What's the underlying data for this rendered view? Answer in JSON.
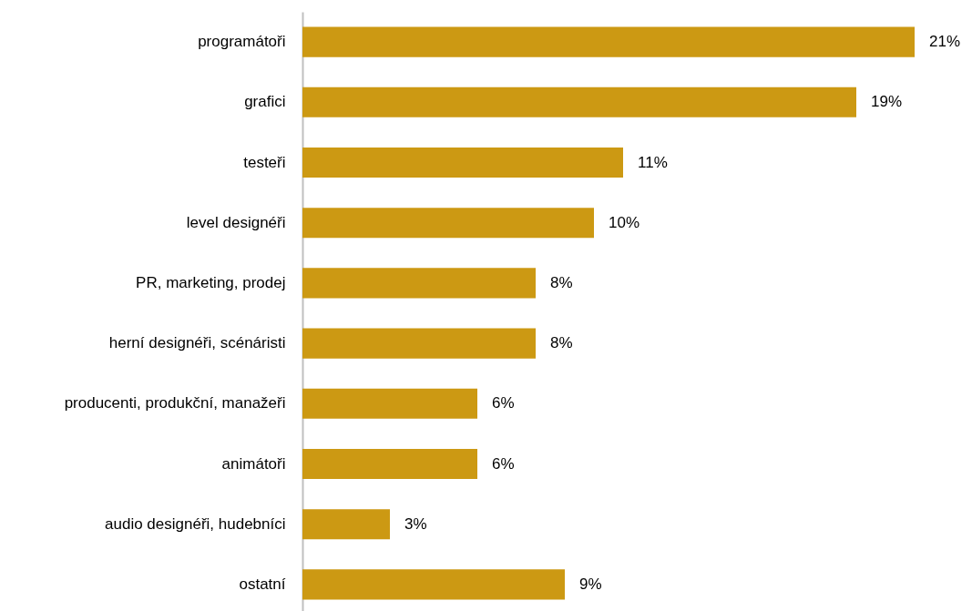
{
  "chart_data": {
    "type": "bar",
    "orientation": "horizontal",
    "categories": [
      "programátoři",
      "grafici",
      "testeři",
      "level designéři",
      "PR, marketing, prodej",
      "herní designéři, scénáristi",
      "producenti, produkční, manažeři",
      "animátoři",
      "audio designéři, hudebníci",
      "ostatní"
    ],
    "values": [
      21,
      19,
      11,
      10,
      8,
      8,
      6,
      6,
      3,
      9
    ],
    "color": "#cc9913",
    "value_labels": [
      "21%",
      "19%",
      "11%",
      "10%",
      "8%",
      "8%",
      "6%",
      "6%",
      "3%",
      "9%"
    ]
  }
}
